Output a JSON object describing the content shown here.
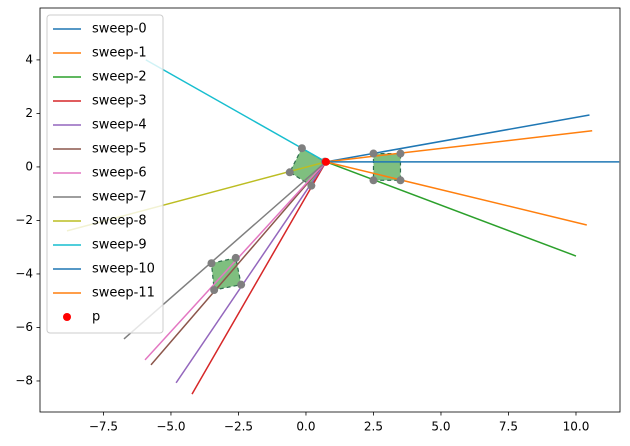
{
  "chart_data": {
    "type": "line",
    "xlim": [
      -9.85,
      11.63
    ],
    "ylim": [
      -9.16,
      5.94
    ],
    "xticks": [
      {
        "value": -7.5,
        "label": "−7.5"
      },
      {
        "value": -5,
        "label": "−5.0"
      },
      {
        "value": -2.5,
        "label": "−2.5"
      },
      {
        "value": 0,
        "label": "0.0"
      },
      2.5,
      {
        "value": 5,
        "label": "5.0"
      },
      7.5,
      {
        "value": 10,
        "label": "10.0"
      }
    ],
    "yticks": [
      {
        "value": -8,
        "label": "−8"
      },
      {
        "value": -6,
        "label": "−6"
      },
      {
        "value": -4,
        "label": "−4"
      },
      {
        "value": -2,
        "label": "−2"
      },
      0,
      2,
      4
    ],
    "legend": "upper left",
    "series": [
      {
        "name": "sweep-0",
        "color": "#1f77b4",
        "x": [
          0.74,
          10.5
        ],
        "y": [
          0.19,
          1.94
        ]
      },
      {
        "name": "sweep-1",
        "color": "#ff7f0e",
        "x": [
          0.74,
          10.6
        ],
        "y": [
          0.19,
          1.35
        ]
      },
      {
        "name": "sweep-2",
        "color": "#2ca02c",
        "x": [
          0.74,
          10.0
        ],
        "y": [
          0.19,
          -3.33
        ]
      },
      {
        "name": "sweep-3",
        "color": "#d62728",
        "x": [
          0.74,
          -4.22
        ],
        "y": [
          0.19,
          -8.49
        ]
      },
      {
        "name": "sweep-4",
        "color": "#9467bd",
        "x": [
          0.74,
          -4.81
        ],
        "y": [
          0.19,
          -8.07
        ]
      },
      {
        "name": "sweep-5",
        "color": "#8c564b",
        "x": [
          0.74,
          -5.74
        ],
        "y": [
          0.19,
          -7.4
        ]
      },
      {
        "name": "sweep-6",
        "color": "#e377c2",
        "x": [
          0.74,
          -5.96
        ],
        "y": [
          0.19,
          -7.21
        ]
      },
      {
        "name": "sweep-7",
        "color": "#7f7f7f",
        "x": [
          0.74,
          -6.74
        ],
        "y": [
          0.19,
          -6.43
        ]
      },
      {
        "name": "sweep-8",
        "color": "#bcbd22",
        "x": [
          0.74,
          -8.85
        ],
        "y": [
          0.19,
          -2.39
        ]
      },
      {
        "name": "sweep-9",
        "color": "#17becf",
        "x": [
          0.74,
          -5.93
        ],
        "y": [
          0.19,
          4.0
        ]
      },
      {
        "name": "sweep-10",
        "color": "#1f77b4",
        "x": [
          0.74,
          11.6
        ],
        "y": [
          0.19,
          0.19
        ]
      },
      {
        "name": "sweep-11",
        "color": "#ff7f0e",
        "x": [
          0.74,
          10.4
        ],
        "y": [
          0.19,
          -2.17
        ]
      }
    ],
    "points": {
      "name": "p",
      "color": "#ff0000",
      "x": [
        0.74
      ],
      "y": [
        0.19
      ]
    },
    "polygons": {
      "fill": "#7fbf7f",
      "edge": "#2f6f4f",
      "vertex_color": "#7f7f7f",
      "shapes": [
        {
          "x": [
            -0.15,
            -0.6,
            0.2,
            0.7
          ],
          "y": [
            0.7,
            -0.2,
            -0.7,
            0.2
          ]
        },
        {
          "x": [
            2.5,
            3.5,
            3.5,
            2.5
          ],
          "y": [
            0.5,
            0.5,
            -0.5,
            -0.5
          ]
        },
        {
          "x": [
            -3.5,
            -2.6,
            -2.4,
            -3.4
          ],
          "y": [
            -3.6,
            -3.4,
            -4.4,
            -4.6
          ]
        }
      ]
    }
  }
}
